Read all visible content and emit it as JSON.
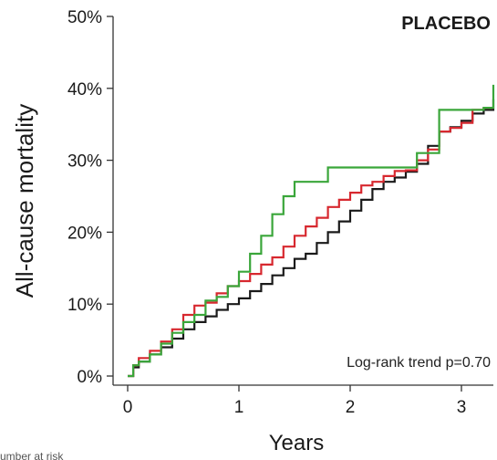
{
  "chart_data": {
    "type": "line",
    "title": "PLACEBO",
    "xlabel": "Years",
    "ylabel": "All-cause mortality",
    "xlim": [
      -0.1,
      3.3
    ],
    "ylim": [
      0,
      50
    ],
    "xticks": [
      0,
      1,
      2,
      3
    ],
    "xtick_labels": [
      "0",
      "1",
      "2",
      "3"
    ],
    "yticks": [
      0,
      10,
      20,
      30,
      40,
      50
    ],
    "ytick_labels": [
      "0%",
      "10%",
      "20%",
      "30%",
      "40%",
      "50%"
    ],
    "grid": false,
    "step": true,
    "annotation": "Log-rank trend p=0.70",
    "footer_text": "umber at risk",
    "colors": {
      "black": "#1a1a1a",
      "red": "#d7282f",
      "green": "#3aa63a",
      "axis": "#333333"
    },
    "series": [
      {
        "color": "#1a1a1a",
        "x": [
          0,
          0.05,
          0.1,
          0.2,
          0.3,
          0.4,
          0.5,
          0.6,
          0.7,
          0.8,
          0.9,
          1.0,
          1.1,
          1.2,
          1.3,
          1.4,
          1.5,
          1.6,
          1.7,
          1.8,
          1.9,
          2.0,
          2.1,
          2.2,
          2.3,
          2.4,
          2.5,
          2.6,
          2.7,
          2.8,
          2.9,
          3.0,
          3.1,
          3.2,
          3.3
        ],
        "y": [
          0,
          1.2,
          2.0,
          3.0,
          4.0,
          5.2,
          6.5,
          7.5,
          8.3,
          9.2,
          10.0,
          10.8,
          11.8,
          12.8,
          14.0,
          15.0,
          16.3,
          17.0,
          18.5,
          20.0,
          21.5,
          23.0,
          24.5,
          26.0,
          27.0,
          27.6,
          28.4,
          29.5,
          32.0,
          34.0,
          34.6,
          35.5,
          36.5,
          37.0,
          38.5
        ]
      },
      {
        "color": "#d7282f",
        "x": [
          0,
          0.05,
          0.1,
          0.2,
          0.3,
          0.4,
          0.5,
          0.6,
          0.7,
          0.8,
          0.9,
          1.0,
          1.1,
          1.2,
          1.3,
          1.4,
          1.5,
          1.6,
          1.7,
          1.8,
          1.9,
          2.0,
          2.1,
          2.2,
          2.3,
          2.4,
          2.5,
          2.6,
          2.7,
          2.8,
          2.9,
          3.0,
          3.1,
          3.2,
          3.3
        ],
        "y": [
          0,
          1.5,
          2.5,
          3.5,
          4.8,
          6.5,
          8.5,
          9.8,
          10.2,
          11.5,
          12.5,
          13.2,
          14.2,
          15.5,
          16.5,
          18.0,
          19.5,
          20.8,
          22.0,
          23.5,
          24.5,
          25.5,
          26.5,
          27.0,
          27.8,
          28.5,
          28.6,
          30.0,
          31.5,
          34.0,
          34.5,
          35.2,
          37.0,
          37.3,
          37.3
        ]
      },
      {
        "color": "#3aa63a",
        "x": [
          0,
          0.05,
          0.1,
          0.2,
          0.3,
          0.4,
          0.5,
          0.6,
          0.7,
          0.8,
          0.9,
          1.0,
          1.1,
          1.2,
          1.3,
          1.4,
          1.5,
          1.6,
          1.7,
          1.8,
          1.9,
          2.0,
          2.1,
          2.2,
          2.3,
          2.4,
          2.5,
          2.6,
          2.7,
          2.8,
          2.9,
          3.0,
          3.1,
          3.2,
          3.3
        ],
        "y": [
          0,
          1.5,
          2.0,
          3.0,
          4.5,
          6.0,
          7.5,
          8.5,
          10.5,
          11.0,
          12.5,
          14.5,
          17.0,
          19.5,
          22.5,
          25.0,
          27.0,
          27.0,
          27.0,
          29.0,
          29.0,
          29.0,
          29.0,
          29.0,
          29.0,
          29.0,
          29.0,
          31.0,
          31.0,
          37.0,
          37.0,
          37.0,
          37.0,
          37.3,
          40.5
        ]
      }
    ]
  }
}
